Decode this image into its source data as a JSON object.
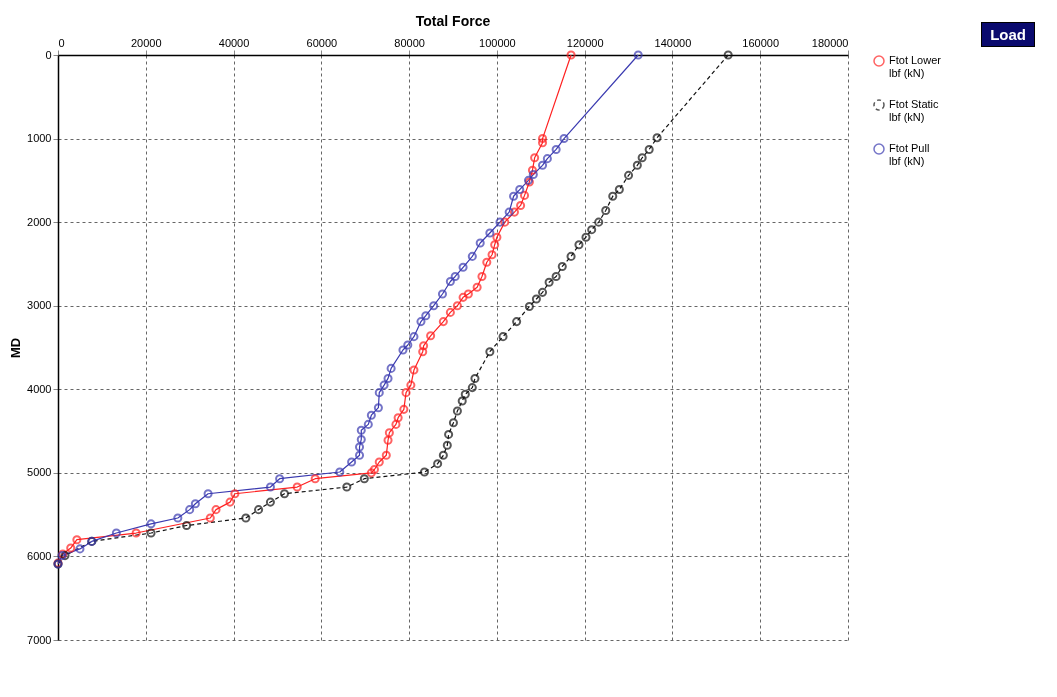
{
  "chart_data": {
    "type": "line",
    "title": "Total Force",
    "ylabel": "MD",
    "annotations": [
      "Load"
    ],
    "xlim": [
      0,
      180000
    ],
    "xticks": [
      0,
      20000,
      40000,
      60000,
      80000,
      100000,
      120000,
      140000,
      160000,
      180000
    ],
    "ylim": [
      7000,
      0
    ],
    "yticks": [
      0,
      1000,
      2000,
      3000,
      4000,
      5000,
      6000,
      7000
    ],
    "grid": true,
    "legend": "right",
    "marker": "circle",
    "series": [
      {
        "name": "Ftot Lower\nlbf (kN)",
        "color": "#ff2020",
        "line_style": "solid",
        "x": [
          116900,
          110400,
          110400,
          108600,
          108100,
          107400,
          106300,
          105400,
          104000,
          101800,
          100000,
          99500,
          98900,
          97700,
          96600,
          95500,
          93500,
          92300,
          91000,
          89400,
          87800,
          84900,
          83300,
          83100,
          81100,
          80400,
          79300,
          78800,
          77500,
          77000,
          75500,
          75200,
          74800,
          73200,
          72100,
          71400,
          58600,
          54500,
          40300,
          39200,
          36000,
          34700,
          17800,
          4300,
          2900,
          1100,
          0
        ],
        "values": [
          0,
          1000,
          1050,
          1230,
          1380,
          1520,
          1680,
          1800,
          1880,
          2000,
          2180,
          2270,
          2390,
          2480,
          2650,
          2780,
          2860,
          2900,
          3000,
          3080,
          3190,
          3360,
          3480,
          3550,
          3770,
          3950,
          4040,
          4240,
          4340,
          4420,
          4520,
          4610,
          4790,
          4870,
          4960,
          5000,
          5070,
          5170,
          5250,
          5350,
          5440,
          5540,
          5720,
          5800,
          5900,
          5970,
          6080
        ]
      },
      {
        "name": "Ftot Static\nlbf (kN)",
        "color": "#111111",
        "line_style": "dashed",
        "x": [
          152700,
          136500,
          134700,
          133100,
          132000,
          130000,
          127900,
          126400,
          124800,
          123200,
          121600,
          120300,
          118700,
          116900,
          114900,
          113500,
          111900,
          110400,
          109000,
          107400,
          104500,
          101400,
          98400,
          95000,
          94400,
          92800,
          92100,
          91000,
          90100,
          89000,
          88700,
          87800,
          86500,
          83500,
          69800,
          65800,
          51600,
          48400,
          45700,
          42800,
          29300,
          21200,
          7700,
          1600,
          0
        ],
        "values": [
          0,
          990,
          1130,
          1230,
          1320,
          1440,
          1610,
          1690,
          1860,
          2000,
          2090,
          2180,
          2270,
          2410,
          2530,
          2650,
          2720,
          2840,
          2920,
          3010,
          3190,
          3370,
          3550,
          3870,
          3980,
          4060,
          4140,
          4260,
          4400,
          4540,
          4670,
          4790,
          4890,
          4990,
          5070,
          5170,
          5250,
          5350,
          5440,
          5540,
          5630,
          5720,
          5820,
          5990,
          6090
        ]
      },
      {
        "name": "Ftot Pull\nlbf (kN)",
        "color": "#3a3ab0",
        "line_style": "solid",
        "x": [
          132200,
          115300,
          113500,
          111500,
          110400,
          108300,
          107200,
          105200,
          103800,
          102800,
          100700,
          98400,
          96200,
          94400,
          92300,
          90500,
          89400,
          87600,
          85600,
          83800,
          82700,
          81100,
          79700,
          78600,
          75900,
          75200,
          74300,
          73200,
          73000,
          71400,
          70700,
          69100,
          69100,
          68700,
          68700,
          66900,
          64200,
          50500,
          48400,
          34200,
          31300,
          30000,
          27300,
          21200,
          13300,
          7700,
          5000,
          900,
          0
        ],
        "values": [
          0,
          1000,
          1130,
          1240,
          1320,
          1430,
          1500,
          1610,
          1690,
          1880,
          2000,
          2130,
          2250,
          2410,
          2540,
          2650,
          2710,
          2860,
          3000,
          3120,
          3190,
          3370,
          3470,
          3530,
          3750,
          3870,
          3950,
          4040,
          4220,
          4310,
          4420,
          4490,
          4600,
          4690,
          4790,
          4870,
          4990,
          5070,
          5170,
          5250,
          5370,
          5440,
          5540,
          5610,
          5720,
          5820,
          5910,
          5990,
          6090
        ]
      }
    ]
  }
}
